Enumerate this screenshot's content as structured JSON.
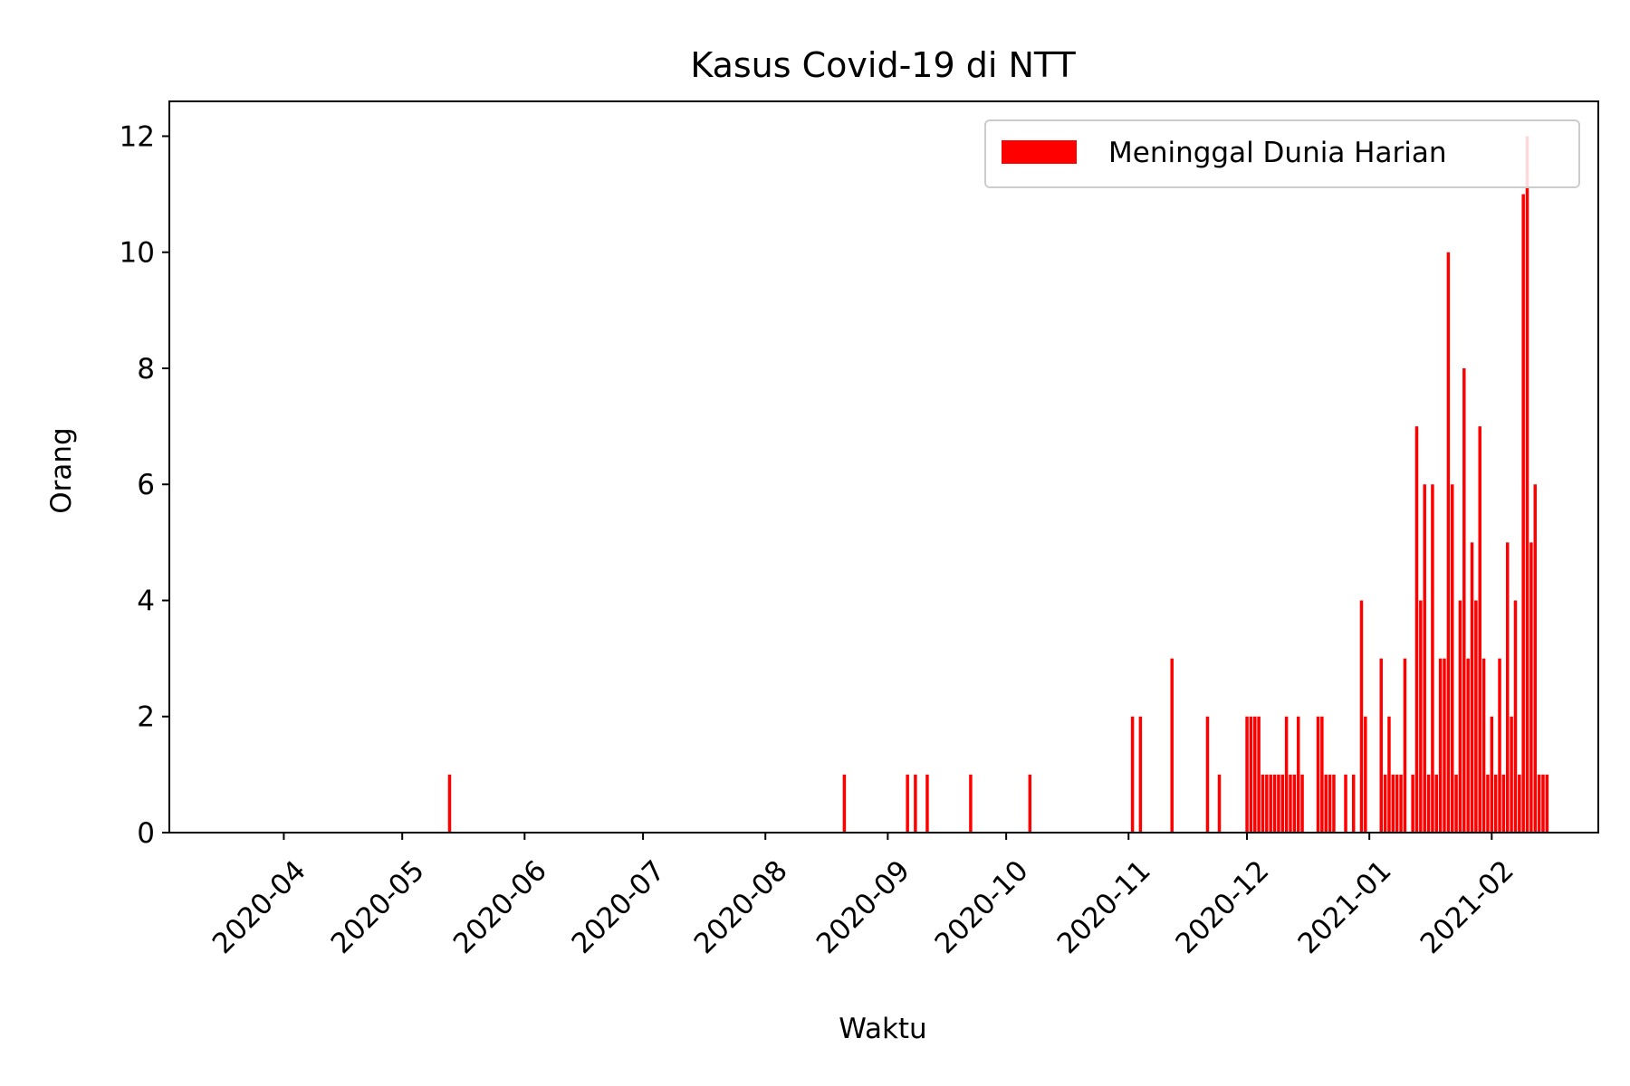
{
  "chart_data": {
    "type": "bar",
    "title": "Kasus Covid-19 di NTT",
    "xlabel": "Waktu",
    "ylabel": "Orang",
    "ylim": [
      0,
      12.6
    ],
    "xlim": [
      "2020-03-03",
      "2021-02-28"
    ],
    "yticks": [
      "0",
      "2",
      "4",
      "6",
      "8",
      "10",
      "12"
    ],
    "xticks": [
      "2020-04",
      "2020-05",
      "2020-06",
      "2020-07",
      "2020-08",
      "2020-09",
      "2020-10",
      "2020-11",
      "2020-12",
      "2021-01",
      "2021-02"
    ],
    "legend_position": "upper right",
    "grid": false,
    "bar_color": "#ff0000",
    "series": [
      {
        "name": "Meninggal Dunia Harian",
        "x": [
          "2020-05-13",
          "2020-08-21",
          "2020-09-06",
          "2020-09-08",
          "2020-09-11",
          "2020-09-22",
          "2020-10-07",
          "2020-11-02",
          "2020-11-04",
          "2020-11-12",
          "2020-11-21",
          "2020-11-24",
          "2020-12-01",
          "2020-12-02",
          "2020-12-03",
          "2020-12-04",
          "2020-12-05",
          "2020-12-06",
          "2020-12-07",
          "2020-12-08",
          "2020-12-09",
          "2020-12-10",
          "2020-12-11",
          "2020-12-12",
          "2020-12-13",
          "2020-12-14",
          "2020-12-15",
          "2020-12-19",
          "2020-12-20",
          "2020-12-21",
          "2020-12-22",
          "2020-12-23",
          "2020-12-26",
          "2020-12-28",
          "2020-12-30",
          "2020-12-31",
          "2021-01-04",
          "2021-01-05",
          "2021-01-06",
          "2021-01-07",
          "2021-01-08",
          "2021-01-09",
          "2021-01-10",
          "2021-01-12",
          "2021-01-13",
          "2021-01-14",
          "2021-01-15",
          "2021-01-16",
          "2021-01-17",
          "2021-01-18",
          "2021-01-19",
          "2021-01-20",
          "2021-01-21",
          "2021-01-22",
          "2021-01-23",
          "2021-01-24",
          "2021-01-25",
          "2021-01-26",
          "2021-01-27",
          "2021-01-28",
          "2021-01-29",
          "2021-01-30",
          "2021-01-31",
          "2021-02-01",
          "2021-02-02",
          "2021-02-03",
          "2021-02-04",
          "2021-02-05",
          "2021-02-06",
          "2021-02-07",
          "2021-02-08",
          "2021-02-09",
          "2021-02-10",
          "2021-02-11",
          "2021-02-12",
          "2021-02-13",
          "2021-02-14",
          "2021-02-15"
        ],
        "values": [
          1,
          1,
          1,
          1,
          1,
          1,
          1,
          2,
          2,
          3,
          2,
          1,
          2,
          2,
          2,
          2,
          1,
          1,
          1,
          1,
          1,
          1,
          2,
          1,
          1,
          2,
          1,
          2,
          2,
          1,
          1,
          1,
          1,
          1,
          4,
          2,
          3,
          1,
          2,
          1,
          1,
          1,
          3,
          1,
          7,
          4,
          6,
          1,
          6,
          1,
          3,
          3,
          10,
          6,
          1,
          4,
          8,
          3,
          5,
          4,
          7,
          3,
          1,
          2,
          1,
          3,
          1,
          5,
          2,
          4,
          1,
          11,
          12,
          5,
          6,
          1,
          1,
          1
        ]
      }
    ]
  }
}
